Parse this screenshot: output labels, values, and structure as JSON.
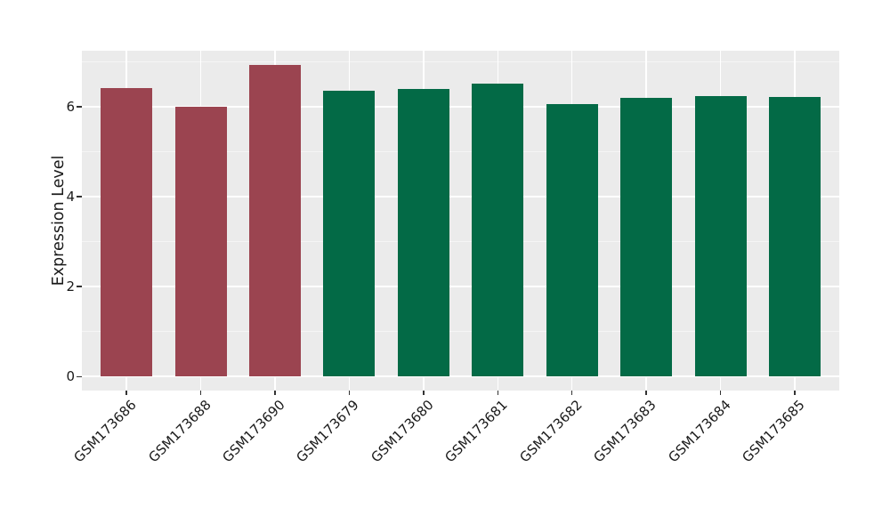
{
  "figure": {
    "background": "#FFFFFF"
  },
  "panel": {
    "background": "#EBEBEB",
    "grid_major_color": "#FFFFFF",
    "grid_minor_color": "#F5F5F5"
  },
  "colors": {
    "red_group": "#9B4450",
    "green_group": "#036A46",
    "tick_text": "#1A1A1A",
    "tick_mark": "#333333"
  },
  "y_axis": {
    "title": "Expression Level",
    "tick_labels": [
      "0",
      "2",
      "4",
      "6"
    ],
    "tick_values": [
      0,
      2,
      4,
      6
    ],
    "minor_tick_values": [
      1,
      3,
      5,
      7
    ]
  },
  "x_axis": {
    "labels": [
      "GSM173686",
      "GSM173688",
      "GSM173690",
      "GSM173679",
      "GSM173680",
      "GSM173681",
      "GSM173682",
      "GSM173683",
      "GSM173684",
      "GSM173685"
    ],
    "label_rotation_deg": 45
  },
  "chart_data": {
    "type": "bar",
    "title": "",
    "xlabel": "",
    "ylabel": "Expression Level",
    "ylim": [
      0,
      7.25
    ],
    "yticks": [
      0,
      2,
      4,
      6
    ],
    "minor_yticks": [
      1,
      3,
      5,
      7
    ],
    "grid": "on",
    "legend": "none",
    "panel_style": "ggplot-gray",
    "categories": [
      "GSM173686",
      "GSM173688",
      "GSM173690",
      "GSM173679",
      "GSM173680",
      "GSM173681",
      "GSM173682",
      "GSM173683",
      "GSM173684",
      "GSM173685"
    ],
    "values": [
      6.41,
      6.0,
      6.92,
      6.35,
      6.39,
      6.52,
      6.06,
      6.2,
      6.24,
      6.22
    ],
    "bar_colors": [
      "#9B4450",
      "#9B4450",
      "#9B4450",
      "#036A46",
      "#036A46",
      "#036A46",
      "#036A46",
      "#036A46",
      "#036A46",
      "#036A46"
    ],
    "groups": [
      {
        "name": "red-group",
        "color": "#9B4450",
        "categories": [
          "GSM173686",
          "GSM173688",
          "GSM173690"
        ]
      },
      {
        "name": "green-group",
        "color": "#036A46",
        "categories": [
          "GSM173679",
          "GSM173680",
          "GSM173681",
          "GSM173682",
          "GSM173683",
          "GSM173684",
          "GSM173685"
        ]
      }
    ]
  }
}
